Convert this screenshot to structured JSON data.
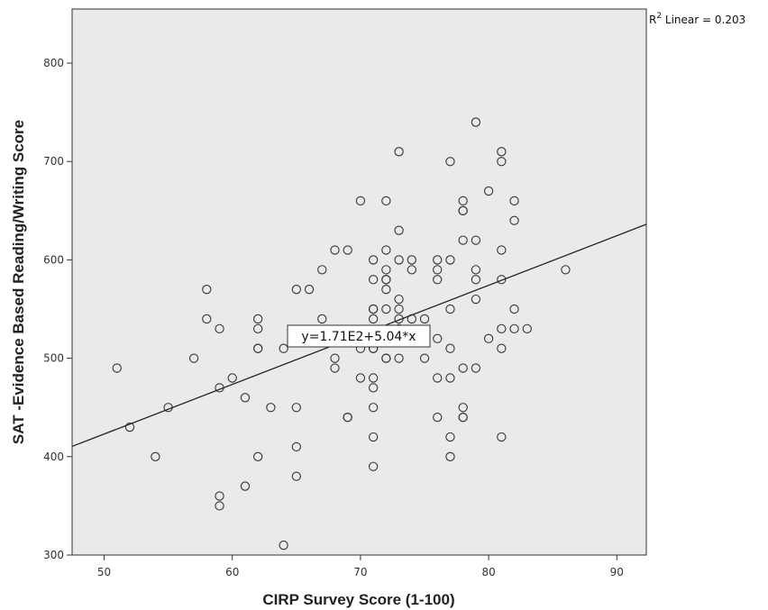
{
  "chart_data": {
    "type": "scatter",
    "title": "",
    "xlabel": "CIRP Survey Score (1-100)",
    "ylabel": "SAT -Evidence Based Reading/Writing Score",
    "xlim": [
      47.5,
      92.3
    ],
    "ylim": [
      300,
      855
    ],
    "xticks": [
      50,
      60,
      70,
      80,
      90
    ],
    "yticks": [
      300,
      400,
      500,
      600,
      700,
      800
    ],
    "grid": false,
    "colors": {
      "plot_background": "#eaeaea",
      "frame": "#333333",
      "marker": "#333333",
      "fit_line": "#222222"
    },
    "fit_line": {
      "intercept": 171,
      "slope": 5.04,
      "equation_label": "y=1.71E2+5.04*x",
      "r2_prefix": "R",
      "r2_superscript": "2",
      "r2_suffix": " Linear = 0.203"
    },
    "points": [
      [
        51,
        490
      ],
      [
        52,
        430
      ],
      [
        54,
        400
      ],
      [
        55,
        450
      ],
      [
        57,
        500
      ],
      [
        58,
        540
      ],
      [
        58,
        570
      ],
      [
        59,
        530
      ],
      [
        59,
        470
      ],
      [
        59,
        360
      ],
      [
        59,
        350
      ],
      [
        60,
        480
      ],
      [
        61,
        460
      ],
      [
        61,
        370
      ],
      [
        62,
        540
      ],
      [
        62,
        530
      ],
      [
        62,
        510
      ],
      [
        62,
        510
      ],
      [
        62,
        400
      ],
      [
        63,
        450
      ],
      [
        64,
        510
      ],
      [
        64,
        310
      ],
      [
        65,
        570
      ],
      [
        65,
        450
      ],
      [
        65,
        410
      ],
      [
        65,
        380
      ],
      [
        66,
        570
      ],
      [
        67,
        590
      ],
      [
        67,
        540
      ],
      [
        68,
        610
      ],
      [
        68,
        500
      ],
      [
        68,
        490
      ],
      [
        69,
        610
      ],
      [
        69,
        440
      ],
      [
        69,
        440
      ],
      [
        70,
        660
      ],
      [
        70,
        510
      ],
      [
        70,
        480
      ],
      [
        71,
        600
      ],
      [
        71,
        580
      ],
      [
        71,
        550
      ],
      [
        71,
        550
      ],
      [
        71,
        540
      ],
      [
        71,
        510
      ],
      [
        71,
        510
      ],
      [
        71,
        480
      ],
      [
        71,
        470
      ],
      [
        71,
        450
      ],
      [
        71,
        420
      ],
      [
        71,
        390
      ],
      [
        72,
        660
      ],
      [
        72,
        610
      ],
      [
        72,
        590
      ],
      [
        72,
        580
      ],
      [
        72,
        580
      ],
      [
        72,
        570
      ],
      [
        72,
        550
      ],
      [
        72,
        500
      ],
      [
        72,
        500
      ],
      [
        73,
        710
      ],
      [
        73,
        630
      ],
      [
        73,
        600
      ],
      [
        73,
        560
      ],
      [
        73,
        550
      ],
      [
        73,
        540
      ],
      [
        73,
        530
      ],
      [
        73,
        520
      ],
      [
        73,
        500
      ],
      [
        74,
        600
      ],
      [
        74,
        590
      ],
      [
        74,
        540
      ],
      [
        75,
        540
      ],
      [
        75,
        520
      ],
      [
        75,
        500
      ],
      [
        76,
        600
      ],
      [
        76,
        590
      ],
      [
        76,
        580
      ],
      [
        76,
        520
      ],
      [
        76,
        480
      ],
      [
        76,
        440
      ],
      [
        77,
        700
      ],
      [
        77,
        600
      ],
      [
        77,
        550
      ],
      [
        77,
        510
      ],
      [
        77,
        480
      ],
      [
        77,
        420
      ],
      [
        77,
        400
      ],
      [
        78,
        660
      ],
      [
        78,
        650
      ],
      [
        78,
        650
      ],
      [
        78,
        620
      ],
      [
        78,
        490
      ],
      [
        78,
        450
      ],
      [
        78,
        440
      ],
      [
        78,
        440
      ],
      [
        79,
        740
      ],
      [
        79,
        620
      ],
      [
        79,
        590
      ],
      [
        79,
        580
      ],
      [
        79,
        560
      ],
      [
        79,
        490
      ],
      [
        80,
        670
      ],
      [
        80,
        520
      ],
      [
        81,
        710
      ],
      [
        81,
        700
      ],
      [
        81,
        610
      ],
      [
        81,
        580
      ],
      [
        81,
        530
      ],
      [
        81,
        510
      ],
      [
        81,
        420
      ],
      [
        82,
        660
      ],
      [
        82,
        640
      ],
      [
        82,
        550
      ],
      [
        82,
        530
      ],
      [
        83,
        530
      ],
      [
        86,
        590
      ]
    ]
  }
}
